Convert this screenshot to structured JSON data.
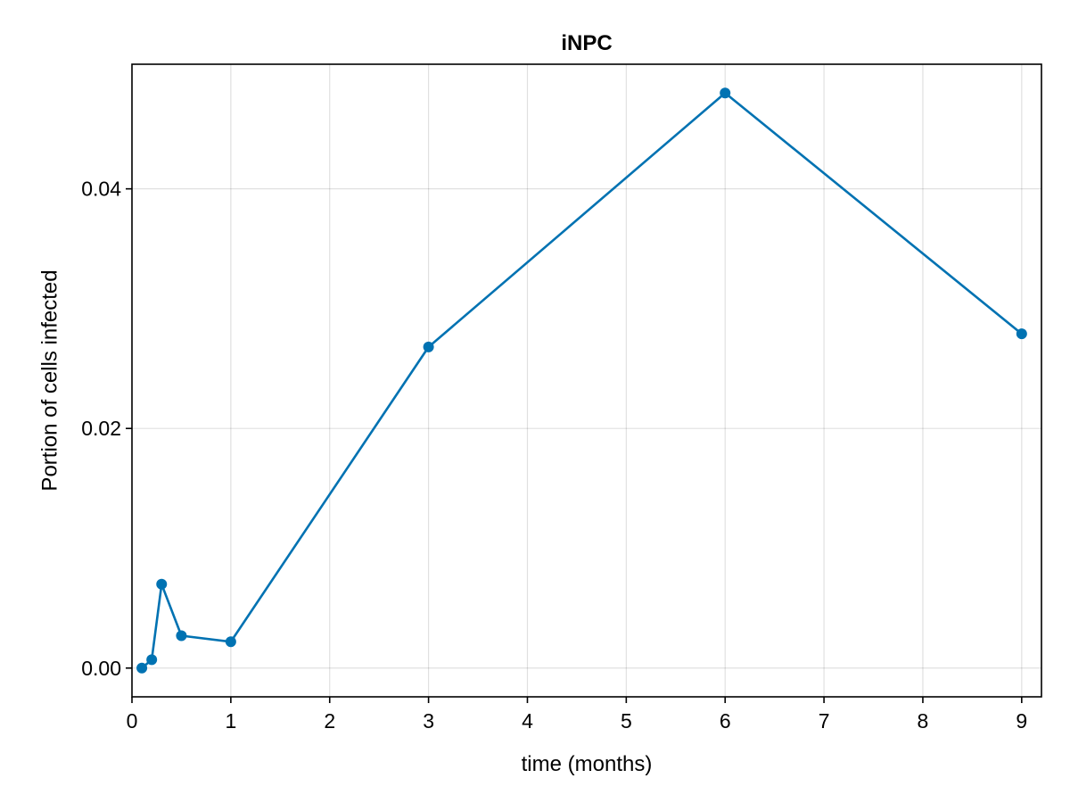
{
  "chart_data": {
    "type": "line",
    "title": "iNPC",
    "xlabel": "time (months)",
    "ylabel": "Portion of cells infected",
    "xlim": [
      0,
      9.2
    ],
    "ylim": [
      -0.0024,
      0.0504
    ],
    "xticks": [
      0,
      1,
      2,
      3,
      4,
      5,
      6,
      7,
      8,
      9
    ],
    "yticks": [
      0.0,
      0.02,
      0.04
    ],
    "xtick_labels": [
      "0",
      "1",
      "2",
      "3",
      "4",
      "5",
      "6",
      "7",
      "8",
      "9"
    ],
    "ytick_labels": [
      "0.00",
      "0.02",
      "0.04"
    ],
    "grid": true,
    "series": [
      {
        "color": "#0072b2",
        "marker": "circle",
        "x": [
          0.1,
          0.2,
          0.3,
          0.5,
          1,
          3,
          6,
          9
        ],
        "y": [
          0.0,
          0.0007,
          0.007,
          0.0027,
          0.0022,
          0.0268,
          0.048,
          0.0279
        ]
      }
    ]
  }
}
